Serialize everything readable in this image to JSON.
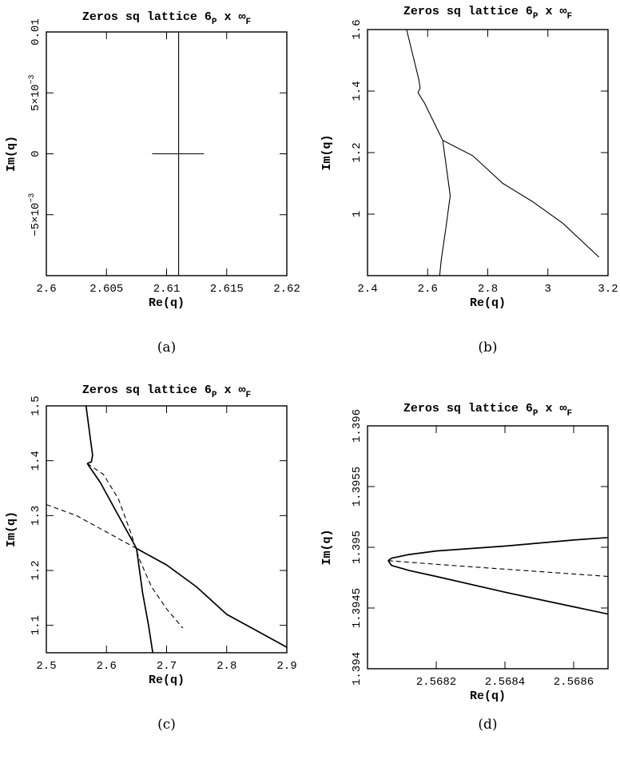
{
  "figure": {
    "captions": [
      "(a)",
      "(b)",
      "(c)",
      "(d)"
    ]
  },
  "chart_data": [
    {
      "type": "line",
      "title": "Zeros sq lattice 6_P x ∞_F",
      "title_parts": {
        "main": "Zeros sq lattice 6",
        "sub1": "P",
        "mid": " x ∞",
        "sub2": "F"
      },
      "xlabel": "Re(q)",
      "ylabel": "Im(q)",
      "xlim": [
        2.6,
        2.62
      ],
      "ylim": [
        -0.01,
        0.01
      ],
      "xticks": [
        2.6,
        2.605,
        2.61,
        2.615,
        2.62
      ],
      "xtick_labels": [
        "2.6",
        "2.605",
        "2.61",
        "2.615",
        "2.62"
      ],
      "yticks": [
        -0.005,
        0,
        0.005,
        0.01
      ],
      "ytick_labels": [
        "−5×10^−3",
        "0",
        "5×10^−3",
        "0.01"
      ],
      "series": [
        {
          "style": "solid",
          "points": [
            [
              2.611,
              -0.01
            ],
            [
              2.611,
              0.01
            ]
          ]
        },
        {
          "style": "solid",
          "points": [
            [
              2.6088,
              0
            ],
            [
              2.6131,
              0
            ]
          ]
        }
      ],
      "caption": "(a)"
    },
    {
      "type": "line",
      "title": "Zeros sq lattice 6_P x ∞_F",
      "title_parts": {
        "main": "Zeros sq lattice 6",
        "sub1": "P",
        "mid": " x ∞",
        "sub2": "F"
      },
      "xlabel": "Re(q)",
      "ylabel": "Im(q)",
      "xlim": [
        2.4,
        3.2
      ],
      "ylim": [
        0.8,
        1.6
      ],
      "xticks": [
        2.4,
        2.6,
        2.8,
        3.0,
        3.2
      ],
      "xtick_labels": [
        "2.4",
        "2.6",
        "2.8",
        "3",
        "3.2"
      ],
      "yticks": [
        1.0,
        1.2,
        1.4,
        1.6
      ],
      "ytick_labels": [
        "1",
        "1.2",
        "1.4",
        "1.6"
      ],
      "series": [
        {
          "style": "solid",
          "points": [
            [
              2.53,
              1.6
            ],
            [
              2.55,
              1.52
            ],
            [
              2.57,
              1.44
            ],
            [
              2.575,
              1.41
            ],
            [
              2.568,
              1.395
            ]
          ]
        },
        {
          "style": "solid",
          "points": [
            [
              2.568,
              1.395
            ],
            [
              2.59,
              1.36
            ],
            [
              2.62,
              1.3
            ],
            [
              2.65,
              1.24
            ]
          ]
        },
        {
          "style": "solid",
          "points": [
            [
              2.65,
              1.24
            ],
            [
              2.66,
              1.17
            ],
            [
              2.675,
              1.06
            ],
            [
              2.66,
              0.95
            ],
            [
              2.645,
              0.85
            ],
            [
              2.64,
              0.8
            ]
          ]
        },
        {
          "style": "solid",
          "points": [
            [
              2.65,
              1.24
            ],
            [
              2.75,
              1.19
            ],
            [
              2.85,
              1.1
            ],
            [
              2.95,
              1.04
            ],
            [
              3.05,
              0.97
            ],
            [
              3.17,
              0.86
            ]
          ]
        }
      ],
      "caption": "(b)"
    },
    {
      "type": "line",
      "title": "Zeros sq lattice 6_P x ∞_F",
      "title_parts": {
        "main": "Zeros sq lattice 6",
        "sub1": "P",
        "mid": " x ∞",
        "sub2": "F"
      },
      "xlabel": "Re(q)",
      "ylabel": "Im(q)",
      "xlim": [
        2.5,
        2.9
      ],
      "ylim": [
        1.05,
        1.5
      ],
      "xticks": [
        2.5,
        2.6,
        2.7,
        2.8,
        2.9
      ],
      "xtick_labels": [
        "2.5",
        "2.6",
        "2.7",
        "2.8",
        "2.9"
      ],
      "yticks": [
        1.1,
        1.2,
        1.3,
        1.4,
        1.5
      ],
      "ytick_labels": [
        "1.1",
        "1.2",
        "1.3",
        "1.4",
        "1.5"
      ],
      "series": [
        {
          "style": "solid",
          "points": [
            [
              2.566,
              1.5
            ],
            [
              2.572,
              1.45
            ],
            [
              2.577,
              1.41
            ],
            [
              2.575,
              1.398
            ],
            [
              2.568,
              1.395
            ]
          ]
        },
        {
          "style": "solid",
          "points": [
            [
              2.568,
              1.395
            ],
            [
              2.59,
              1.36
            ],
            [
              2.615,
              1.31
            ],
            [
              2.64,
              1.26
            ],
            [
              2.65,
              1.24
            ]
          ]
        },
        {
          "style": "solid",
          "points": [
            [
              2.65,
              1.24
            ],
            [
              2.66,
              1.16
            ],
            [
              2.67,
              1.1
            ],
            [
              2.677,
              1.05
            ]
          ]
        },
        {
          "style": "solid",
          "points": [
            [
              2.65,
              1.24
            ],
            [
              2.7,
              1.21
            ],
            [
              2.75,
              1.17
            ],
            [
              2.8,
              1.12
            ],
            [
              2.85,
              1.09
            ],
            [
              2.9,
              1.06
            ]
          ]
        },
        {
          "style": "dashed",
          "points": [
            [
              2.568,
              1.395
            ],
            [
              2.595,
              1.375
            ],
            [
              2.62,
              1.33
            ],
            [
              2.64,
              1.27
            ],
            [
              2.655,
              1.22
            ],
            [
              2.675,
              1.17
            ],
            [
              2.7,
              1.13
            ],
            [
              2.727,
              1.095
            ]
          ]
        },
        {
          "style": "dashed",
          "points": [
            [
              2.5,
              1.32
            ],
            [
              2.55,
              1.3
            ],
            [
              2.6,
              1.27
            ],
            [
              2.65,
              1.24
            ]
          ]
        }
      ],
      "caption": "(c)"
    },
    {
      "type": "line",
      "title": "Zeros sq lattice 6_P x ∞_F",
      "title_parts": {
        "main": "Zeros sq lattice 6",
        "sub1": "P",
        "mid": " x ∞",
        "sub2": "F"
      },
      "xlabel": "Re(q)",
      "ylabel": "Im(q)",
      "xlim": [
        2.568,
        2.5687
      ],
      "ylim": [
        1.394,
        1.396
      ],
      "xticks": [
        2.5682,
        2.5684,
        2.5686
      ],
      "xtick_labels": [
        "2.5682",
        "2.5684",
        "2.5686"
      ],
      "yticks": [
        1.394,
        1.3945,
        1.395,
        1.3955,
        1.396
      ],
      "ytick_labels": [
        "1.394",
        "1.3945",
        "1.395",
        "1.3955",
        "1.396"
      ],
      "series": [
        {
          "style": "solid",
          "points": [
            [
              2.5687,
              1.39508
            ],
            [
              2.5686,
              1.39506
            ],
            [
              2.5684,
              1.39501
            ],
            [
              2.5682,
              1.39497
            ],
            [
              2.56812,
              1.39494
            ],
            [
              2.56807,
              1.39491
            ],
            [
              2.56806,
              1.39489
            ]
          ]
        },
        {
          "style": "solid",
          "points": [
            [
              2.56806,
              1.39489
            ],
            [
              2.56807,
              1.39485
            ],
            [
              2.56812,
              1.39481
            ],
            [
              2.5682,
              1.39476
            ],
            [
              2.5684,
              1.39463
            ],
            [
              2.5686,
              1.39451
            ],
            [
              2.5687,
              1.39445
            ]
          ]
        },
        {
          "style": "dashed",
          "points": [
            [
              2.56806,
              1.39489
            ],
            [
              2.5682,
              1.39486
            ],
            [
              2.5684,
              1.39482
            ],
            [
              2.5686,
              1.39478
            ],
            [
              2.5687,
              1.39476
            ]
          ]
        }
      ],
      "caption": "(d)"
    }
  ]
}
